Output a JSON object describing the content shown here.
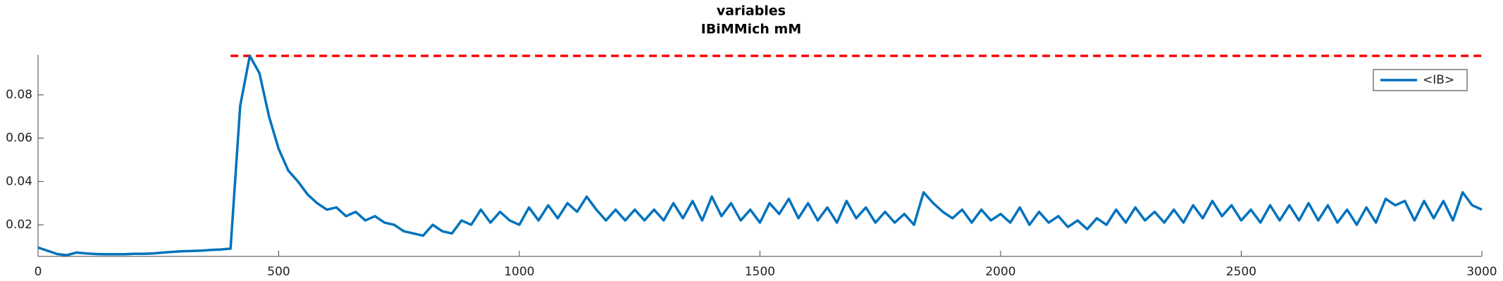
{
  "chart_data": {
    "type": "line",
    "title": "variables",
    "subtitle": "IBiMMich mM",
    "x": [
      0,
      20,
      40,
      60,
      80,
      100,
      120,
      140,
      160,
      180,
      200,
      220,
      240,
      260,
      280,
      300,
      320,
      340,
      360,
      380,
      400,
      420,
      440,
      460,
      480,
      500,
      520,
      540,
      560,
      580,
      600,
      620,
      640,
      660,
      680,
      700,
      720,
      740,
      760,
      780,
      800,
      820,
      840,
      860,
      880,
      900,
      920,
      940,
      960,
      980,
      1000,
      1020,
      1040,
      1060,
      1080,
      1100,
      1120,
      1140,
      1160,
      1180,
      1200,
      1220,
      1240,
      1260,
      1280,
      1300,
      1320,
      1340,
      1360,
      1380,
      1400,
      1420,
      1440,
      1460,
      1480,
      1500,
      1520,
      1540,
      1560,
      1580,
      1600,
      1620,
      1640,
      1660,
      1680,
      1700,
      1720,
      1740,
      1760,
      1780,
      1800,
      1820,
      1840,
      1860,
      1880,
      1900,
      1920,
      1940,
      1960,
      1980,
      2000,
      2020,
      2040,
      2060,
      2080,
      2100,
      2120,
      2140,
      2160,
      2180,
      2200,
      2220,
      2240,
      2260,
      2280,
      2300,
      2320,
      2340,
      2360,
      2380,
      2400,
      2420,
      2440,
      2460,
      2480,
      2500,
      2520,
      2540,
      2560,
      2580,
      2600,
      2620,
      2640,
      2660,
      2680,
      2700,
      2720,
      2740,
      2760,
      2780,
      2800,
      2820,
      2840,
      2860,
      2880,
      2900,
      2920,
      2940,
      2960,
      2980,
      3000
    ],
    "series": [
      {
        "name": "<IB>",
        "color": "#0072bd",
        "values": [
          0.0095,
          0.008,
          0.0065,
          0.006,
          0.0072,
          0.0068,
          0.0065,
          0.0064,
          0.0064,
          0.0064,
          0.0066,
          0.0066,
          0.0068,
          0.0072,
          0.0075,
          0.0078,
          0.0079,
          0.0081,
          0.0084,
          0.0086,
          0.009,
          0.075,
          0.098,
          0.09,
          0.07,
          0.055,
          0.045,
          0.04,
          0.034,
          0.03,
          0.027,
          0.028,
          0.024,
          0.026,
          0.022,
          0.024,
          0.021,
          0.02,
          0.017,
          0.016,
          0.015,
          0.02,
          0.017,
          0.016,
          0.022,
          0.02,
          0.027,
          0.021,
          0.026,
          0.022,
          0.02,
          0.028,
          0.022,
          0.029,
          0.023,
          0.03,
          0.026,
          0.033,
          0.027,
          0.022,
          0.027,
          0.022,
          0.027,
          0.022,
          0.027,
          0.022,
          0.03,
          0.023,
          0.031,
          0.022,
          0.033,
          0.024,
          0.03,
          0.022,
          0.027,
          0.021,
          0.03,
          0.025,
          0.032,
          0.023,
          0.03,
          0.022,
          0.028,
          0.021,
          0.031,
          0.023,
          0.028,
          0.021,
          0.026,
          0.021,
          0.025,
          0.02,
          0.035,
          0.03,
          0.026,
          0.023,
          0.027,
          0.021,
          0.027,
          0.022,
          0.025,
          0.021,
          0.028,
          0.02,
          0.026,
          0.021,
          0.024,
          0.019,
          0.022,
          0.018,
          0.023,
          0.02,
          0.027,
          0.021,
          0.028,
          0.022,
          0.026,
          0.021,
          0.027,
          0.021,
          0.029,
          0.023,
          0.031,
          0.024,
          0.029,
          0.022,
          0.027,
          0.021,
          0.029,
          0.022,
          0.029,
          0.022,
          0.03,
          0.022,
          0.029,
          0.021,
          0.027,
          0.02,
          0.028,
          0.021,
          0.032,
          0.029,
          0.031,
          0.022,
          0.031,
          0.023,
          0.031,
          0.022,
          0.035,
          0.029,
          0.027
        ]
      }
    ],
    "reference_line": {
      "value": 0.098,
      "xstart": 400,
      "xend": 3000,
      "color": "#ff0000"
    },
    "xlim": [
      0,
      3000
    ],
    "xticks": [
      0,
      500,
      1000,
      1500,
      2000,
      2500,
      3000
    ],
    "ylim": [
      0.0054,
      0.0985
    ],
    "yticks": [
      0.02,
      0.04,
      0.06,
      0.08
    ],
    "legend": "upper right"
  }
}
